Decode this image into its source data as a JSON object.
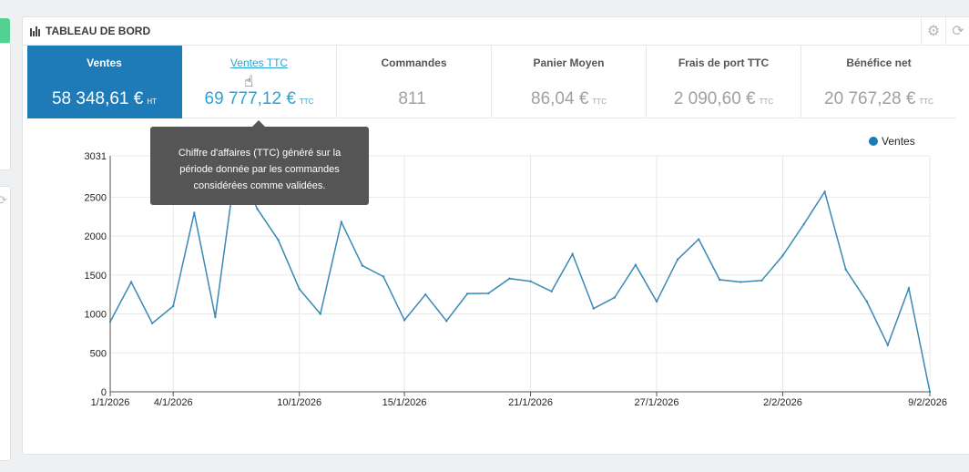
{
  "panel": {
    "title": "TABLEAU DE BORD",
    "settings_icon": "gear-icon",
    "refresh_icon": "refresh-icon"
  },
  "kpis": [
    {
      "label": "Ventes",
      "value": "58 348,61 €",
      "unit": "HT",
      "active": true
    },
    {
      "label": "Ventes TTC",
      "value": "69 777,12 €",
      "unit": "TTC",
      "link": true
    },
    {
      "label": "Commandes",
      "value": "811",
      "unit": ""
    },
    {
      "label": "Panier Moyen",
      "value": "86,04 €",
      "unit": "TTC"
    },
    {
      "label": "Frais de port TTC",
      "value": "2 090,60 €",
      "unit": "TTC"
    },
    {
      "label": "Bénéfice net",
      "value": "20 767,28 €",
      "unit": "TTC"
    }
  ],
  "tooltip": {
    "lines": [
      "Chiffre d'affaires (TTC) généré sur la",
      "période donnée par les commandes",
      "considérées comme validées."
    ]
  },
  "colors": {
    "accent": "#1e7bb8",
    "line": "#3a88b5",
    "link": "#2aa3d8"
  },
  "chart_data": {
    "type": "line",
    "legend": "top-right",
    "grid": true,
    "ylim": [
      0,
      3031
    ],
    "yticks": [
      0,
      500,
      1000,
      1500,
      2000,
      2500,
      3031
    ],
    "x_tick_labels": [
      "1/1/2026",
      "4/1/2026",
      "10/1/2026",
      "15/1/2026",
      "21/1/2026",
      "27/1/2026",
      "2/2/2026",
      "9/2/2026"
    ],
    "series": [
      {
        "name": "Ventes",
        "x": [
          "1/1/2026",
          "2/1/2026",
          "3/1/2026",
          "4/1/2026",
          "5/1/2026",
          "6/1/2026",
          "7/1/2026",
          "8/1/2026",
          "9/1/2026",
          "10/1/2026",
          "11/1/2026",
          "12/1/2026",
          "13/1/2026",
          "14/1/2026",
          "15/1/2026",
          "16/1/2026",
          "17/1/2026",
          "18/1/2026",
          "19/1/2026",
          "20/1/2026",
          "21/1/2026",
          "22/1/2026",
          "23/1/2026",
          "24/1/2026",
          "25/1/2026",
          "26/1/2026",
          "27/1/2026",
          "28/1/2026",
          "29/1/2026",
          "30/1/2026",
          "31/1/2026",
          "1/2/2026",
          "2/2/2026",
          "3/2/2026",
          "4/2/2026",
          "5/2/2026",
          "6/2/2026",
          "7/2/2026",
          "8/2/2026",
          "9/2/2026"
        ],
        "values": [
          900,
          1410,
          880,
          1100,
          2300,
          960,
          2950,
          2350,
          1950,
          1320,
          1000,
          2180,
          1620,
          1480,
          920,
          1250,
          910,
          1260,
          1265,
          1455,
          1420,
          1290,
          1770,
          1070,
          1210,
          1630,
          1160,
          1700,
          1960,
          1440,
          1410,
          1430,
          1750,
          2150,
          2570,
          1570,
          1160,
          600,
          1330,
          0
        ]
      }
    ]
  }
}
